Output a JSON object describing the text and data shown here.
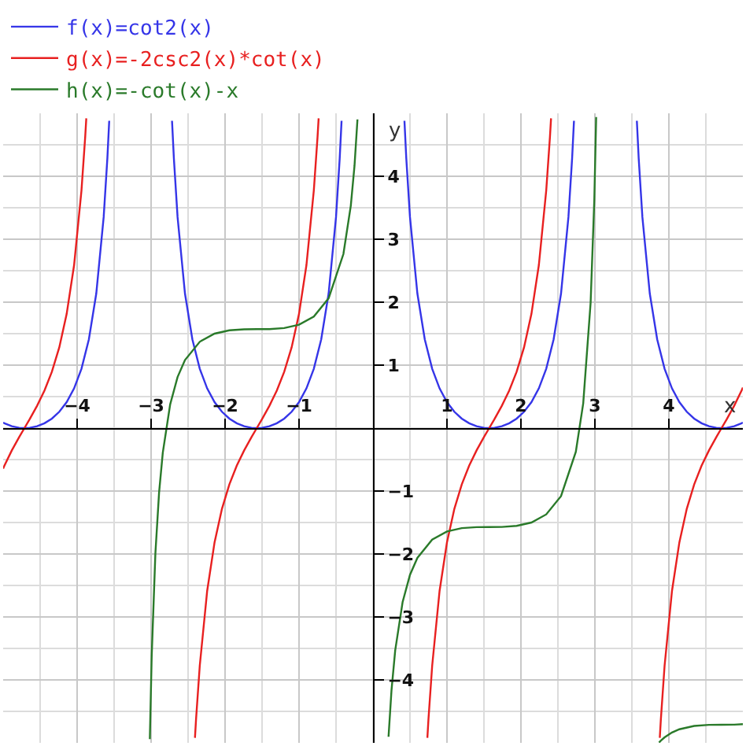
{
  "chart_data": {
    "type": "line",
    "xlabel": "x",
    "ylabel": "y",
    "xlim": [
      -5,
      5
    ],
    "ylim": [
      -5,
      5
    ],
    "xticks": [
      -4,
      -3,
      -2,
      -1,
      1,
      2,
      3,
      4
    ],
    "yticks": [
      -4,
      -3,
      -2,
      -1,
      1,
      2,
      3,
      4
    ],
    "grid": true,
    "legend": "top left",
    "series": [
      {
        "name": "f(x)=cot2(x)",
        "color": "#3535e8",
        "x": [
          -5.0,
          -4.983,
          -4.883,
          -4.783,
          -4.712,
          -4.641,
          -4.541,
          -4.441,
          -4.341,
          -4.241,
          -4.141,
          -4.041,
          -3.941,
          -3.841,
          -3.741,
          -3.641,
          -3.591,
          -3.566,
          -3.142,
          -2.717,
          -2.692,
          -2.642,
          -2.542,
          -2.442,
          -2.342,
          -2.242,
          -2.142,
          -2.042,
          -1.942,
          -1.842,
          -1.742,
          -1.642,
          -1.571,
          -1.5,
          -1.4,
          -1.3,
          -1.2,
          -1.1,
          -1.0,
          -0.9,
          -0.8,
          -0.7,
          -0.6,
          -0.5,
          -0.45,
          -0.425,
          0,
          0.425,
          0.45,
          0.5,
          0.6,
          0.7,
          0.8,
          0.9,
          1.0,
          1.1,
          1.2,
          1.3,
          1.4,
          1.5,
          1.571,
          1.642,
          1.742,
          1.842,
          1.942,
          2.042,
          2.142,
          2.242,
          2.342,
          2.442,
          2.542,
          2.642,
          2.692,
          2.717,
          3.142,
          3.567,
          3.592,
          3.642,
          3.742,
          3.842,
          3.942,
          4.042,
          4.142,
          4.242,
          4.342,
          4.442,
          4.542,
          4.642,
          4.712,
          4.783,
          4.883,
          4.983,
          5.0
        ],
        "values": [
          0.088,
          0.077,
          0.03,
          0.005,
          0,
          0.005,
          0.03,
          0.077,
          0.151,
          0.259,
          0.412,
          0.63,
          0.943,
          1.41,
          2.137,
          3.351,
          4.285,
          4.882,
          null,
          4.882,
          4.285,
          3.351,
          2.137,
          1.41,
          0.943,
          0.63,
          0.412,
          0.259,
          0.151,
          0.077,
          0.03,
          0.005,
          0,
          0.005,
          0.03,
          0.077,
          0.151,
          0.259,
          0.412,
          0.63,
          0.943,
          1.41,
          2.137,
          3.351,
          4.285,
          4.882,
          null,
          4.882,
          4.285,
          3.351,
          2.137,
          1.41,
          0.943,
          0.63,
          0.412,
          0.259,
          0.151,
          0.077,
          0.03,
          0.005,
          0,
          0.005,
          0.03,
          0.077,
          0.151,
          0.259,
          0.412,
          0.63,
          0.943,
          1.41,
          2.137,
          3.351,
          4.285,
          4.882,
          null,
          4.882,
          4.285,
          3.351,
          2.137,
          1.41,
          0.943,
          0.63,
          0.412,
          0.259,
          0.151,
          0.077,
          0.03,
          0.005,
          0,
          0.005,
          0.03,
          0.077,
          0.088
        ]
      },
      {
        "name": "g(x)=-2csc2(x)*cot(x)",
        "color": "#e82020",
        "x": [
          -5.0,
          -4.983,
          -4.883,
          -4.783,
          -4.712,
          -4.641,
          -4.541,
          -4.441,
          -4.341,
          -4.241,
          -4.141,
          -4.041,
          -3.941,
          -3.891,
          -3.876,
          -3.142,
          -2.407,
          -2.392,
          -2.342,
          -2.242,
          -2.142,
          -2.042,
          -1.942,
          -1.842,
          -1.742,
          -1.642,
          -1.571,
          -1.5,
          -1.4,
          -1.3,
          -1.2,
          -1.1,
          -1.0,
          -0.9,
          -0.8,
          -0.75,
          -0.735,
          0,
          0.735,
          0.75,
          0.8,
          0.9,
          1.0,
          1.1,
          1.2,
          1.3,
          1.4,
          1.5,
          1.571,
          1.642,
          1.742,
          1.842,
          1.942,
          2.042,
          2.142,
          2.242,
          2.342,
          2.392,
          2.407,
          3.142,
          3.877,
          3.892,
          3.942,
          4.042,
          4.142,
          4.242,
          4.342,
          4.442,
          4.542,
          4.642,
          4.712,
          4.783,
          4.883,
          4.983,
          5.0
        ],
        "values": [
          -0.643,
          -0.598,
          -0.355,
          -0.142,
          0,
          0.142,
          0.355,
          0.598,
          0.895,
          1.282,
          1.814,
          2.587,
          3.775,
          4.62,
          4.921,
          null,
          -4.921,
          -4.62,
          -3.775,
          -2.587,
          -1.814,
          -1.282,
          -0.895,
          -0.598,
          -0.355,
          -0.142,
          0,
          0.142,
          0.355,
          0.598,
          0.895,
          1.282,
          1.814,
          2.587,
          3.775,
          4.62,
          4.921,
          null,
          -4.921,
          -4.62,
          -3.775,
          -2.587,
          -1.814,
          -1.282,
          -0.895,
          -0.598,
          -0.355,
          -0.142,
          0,
          0.142,
          0.355,
          0.598,
          0.895,
          1.282,
          1.814,
          2.587,
          3.775,
          4.62,
          4.921,
          null,
          -4.921,
          -4.62,
          -3.775,
          -2.587,
          -1.814,
          -1.282,
          -0.895,
          -0.598,
          -0.355,
          -0.142,
          0,
          0.142,
          0.355,
          0.598,
          0.643
        ]
      },
      {
        "name": "h(x)=-cot(x)-x",
        "color": "#2a7a2a",
        "x": [
          -3.017,
          -2.992,
          -2.942,
          -2.892,
          -2.842,
          -2.742,
          -2.642,
          -2.542,
          -2.342,
          -2.142,
          -1.942,
          -1.742,
          -1.571,
          -1.4,
          -1.2,
          -1.0,
          -0.8,
          -0.6,
          -0.4,
          -0.3,
          -0.25,
          -0.21,
          0,
          0.21,
          0.25,
          0.3,
          0.4,
          0.5,
          0.6,
          0.8,
          1.0,
          1.2,
          1.4,
          1.571,
          1.742,
          1.942,
          2.142,
          2.342,
          2.542,
          2.742,
          2.842,
          2.942,
          2.992,
          3.017,
          3.142,
          3.867,
          3.892,
          3.942,
          4.042,
          4.142,
          4.342,
          4.542,
          4.712,
          4.883,
          5.0
        ],
        "values": [
          -4.941,
          -3.625,
          -1.991,
          -1.024,
          -0.391,
          0.377,
          0.811,
          1.08,
          1.371,
          1.5,
          1.553,
          1.569,
          1.571,
          1.572,
          1.589,
          1.642,
          1.771,
          2.062,
          2.765,
          3.533,
          4.166,
          4.903,
          null,
          -4.903,
          -4.166,
          -3.533,
          -2.765,
          -2.331,
          -2.062,
          -1.771,
          -1.642,
          -1.589,
          -1.573,
          -1.571,
          -1.57,
          -1.553,
          -1.5,
          -1.371,
          -1.08,
          -0.377,
          0.391,
          1.991,
          3.625,
          4.941,
          null,
          -4.995,
          -4.965,
          -4.913,
          -4.835,
          -4.784,
          -4.731,
          -4.714,
          -4.712,
          -4.711,
          -4.704
        ]
      }
    ]
  }
}
